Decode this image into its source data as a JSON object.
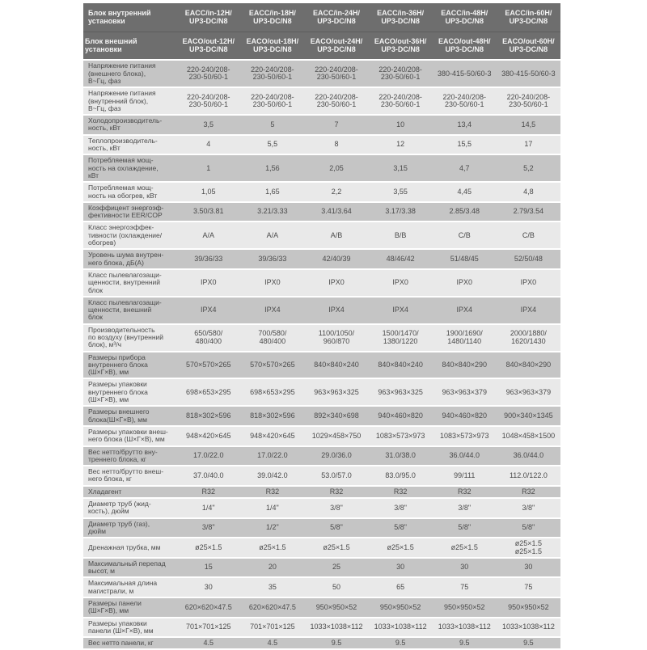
{
  "colors": {
    "page_bg": "#ffffff",
    "header_bg": "#6e6e6e",
    "header_divider": "#5d5d5d",
    "header_text": "#f3f3f3",
    "row_dark": "#c5c5c5",
    "row_light": "#e9e9e9",
    "cell_text": "#4a4a4a",
    "separator": "#ffffff"
  },
  "table": {
    "header_rows": [
      {
        "label": "Блок внутренний\nустановки",
        "cells": [
          "EACC/in-12H/\nUP3-DC/N8",
          "EACC/in-18H/\nUP3-DC/N8",
          "EACC/in-24H/\nUP3-DC/N8",
          "EACC/in-36H/\nUP3-DC/N8",
          "EACC/in-48H/\nUP3-DC/N8",
          "EACC/in-60H/\nUP3-DC/N8"
        ]
      },
      {
        "label": "Блок внешний\nустановки",
        "cells": [
          "EACO/out-12H/\nUP3-DC/N8",
          "EACO/out-18H/\nUP3-DC/N8",
          "EACO/out-24H/\nUP3-DC/N8",
          "EACO/out-36H/\nUP3-DC/N8",
          "EACO/out-48H/\nUP3-DC/N8",
          "EACO/out-60H/\nUP3-DC/N8"
        ]
      }
    ],
    "rows": [
      {
        "label": "Напряжение питания\n(внешнего блока),\nВ~Гц, фаз",
        "values": [
          "220-240/208-\n230-50/60-1",
          "220-240/208-\n230-50/60-1",
          "220-240/208-\n230-50/60-1",
          "220-240/208-\n230-50/60-1",
          "380-415-50/60-3",
          "380-415-50/60-3"
        ]
      },
      {
        "label": "Напряжение питания\n(внутренний блок),\nВ~Гц, фаз",
        "values": [
          "220-240/208-\n230-50/60-1",
          "220-240/208-\n230-50/60-1",
          "220-240/208-\n230-50/60-1",
          "220-240/208-\n230-50/60-1",
          "220-240/208-\n230-50/60-1",
          "220-240/208-\n230-50/60-1"
        ]
      },
      {
        "label": "Холодопроизводитель-\nность, кВт",
        "values": [
          "3,5",
          "5",
          "7",
          "10",
          "13,4",
          "14,5"
        ]
      },
      {
        "label": "Теплопроизводитель-\nность, кВт",
        "values": [
          "4",
          "5,5",
          "8",
          "12",
          "15,5",
          "17"
        ]
      },
      {
        "label": "Потребляемая мощ-\nность на охлаждение,\nкВт",
        "values": [
          "1",
          "1,56",
          "2,05",
          "3,15",
          "4,7",
          "5,2"
        ]
      },
      {
        "label": "Потребляемая мощ-\nность на обогрев, кВт",
        "values": [
          "1,05",
          "1,65",
          "2,2",
          "3,55",
          "4,45",
          "4,8"
        ]
      },
      {
        "label": "Коэффицент энергоэф-\nфективности EER/COP",
        "values": [
          "3.50/3.81",
          "3.21/3.33",
          "3.41/3.64",
          "3.17/3.38",
          "2.85/3.48",
          "2.79/3.54"
        ]
      },
      {
        "label": "Класс энергоэффек-\nтивности (охлаждение/\nобогрев)",
        "values": [
          "A/A",
          "A/A",
          "A/B",
          "B/B",
          "C/B",
          "C/B"
        ]
      },
      {
        "label": "Уровень шума внутрен-\nнего блока, дБ(А)",
        "values": [
          "39/36/33",
          "39/36/33",
          "42/40/39",
          "48/46/42",
          "51/48/45",
          "52/50/48"
        ]
      },
      {
        "label": "Класс пылевлагозащи-\nщенности, внутренний\nблок",
        "values": [
          "IPX0",
          "IPX0",
          "IPX0",
          "IPX0",
          "IPX0",
          "IPX0"
        ]
      },
      {
        "label": "Класс пылевлагозащи-\nщенности, внешний\nблок",
        "values": [
          "IPX4",
          "IPX4",
          "IPX4",
          "IPX4",
          "IPX4",
          "IPX4"
        ]
      },
      {
        "label": "Производительность\nпо воздуху (внутренний\nблок), м³/ч",
        "values": [
          "650/580/\n480/400",
          "700/580/\n480/400",
          "1100/1050/\n960/870",
          "1500/1470/\n1380/1220",
          "1900/1690/\n1480/1140",
          "2000/1880/\n1620/1430"
        ]
      },
      {
        "label": "Размеры прибора\nвнутреннего блока\n(Ш×Г×В), мм",
        "values": [
          "570×570×265",
          "570×570×265",
          "840×840×240",
          "840×840×240",
          "840×840×290",
          "840×840×290"
        ]
      },
      {
        "label": "Размеры упаковки\nвнутреннего блока\n(Ш×Г×В), мм",
        "values": [
          "698×653×295",
          "698×653×295",
          "963×963×325",
          "963×963×325",
          "963×963×379",
          "963×963×379"
        ]
      },
      {
        "label": "Размеры внешнего\nблока(Ш×Г×В), мм",
        "values": [
          "818×302×596",
          "818×302×596",
          "892×340×698",
          "940×460×820",
          "940×460×820",
          "900×340×1345"
        ]
      },
      {
        "label": "Размеры упаковки внеш-\nнего блока (Ш×Г×В), мм",
        "values": [
          "948×420×645",
          "948×420×645",
          "1029×458×750",
          "1083×573×973",
          "1083×573×973",
          "1048×458×1500"
        ]
      },
      {
        "label": "Вес нетто/брутто вну-\nтреннего блока, кг",
        "values": [
          "17.0/22.0",
          "17.0/22.0",
          "29.0/36.0",
          "31.0/38.0",
          "36.0/44.0",
          "36.0/44.0"
        ]
      },
      {
        "label": "Вес нетто/брутто внеш-\nнего блока, кг",
        "values": [
          "37.0/40.0",
          "39.0/42.0",
          "53.0/57.0",
          "83.0/95.0",
          "99/111",
          "112.0/122.0"
        ]
      },
      {
        "label": "Хладагент",
        "values": [
          "R32",
          "R32",
          "R32",
          "R32",
          "R32",
          "R32"
        ]
      },
      {
        "label": "Диаметр труб (жид-\nкость), дюйм",
        "values": [
          "1/4\"",
          "1/4\"",
          "3/8\"",
          "3/8\"",
          "3/8\"",
          "3/8\""
        ]
      },
      {
        "label": "Диаметр труб (газ),\nдюйм",
        "values": [
          "3/8\"",
          "1/2\"",
          "5/8\"",
          "5/8\"",
          "5/8\"",
          "5/8\""
        ]
      },
      {
        "label": "Дренажная трубка, мм",
        "values": [
          "ø25×1.5",
          "ø25×1.5",
          "ø25×1.5",
          "ø25×1.5",
          "ø25×1.5",
          "ø25×1.5\nø25×1.5"
        ]
      },
      {
        "label": "Максимальный перепад\nвысот, м",
        "values": [
          "15",
          "20",
          "25",
          "30",
          "30",
          "30"
        ]
      },
      {
        "label": "Максимальная длина\nмагистрали, м",
        "values": [
          "30",
          "35",
          "50",
          "65",
          "75",
          "75"
        ]
      },
      {
        "label": "Размеры панели\n(Ш×Г×В), мм",
        "values": [
          "620×620×47.5",
          "620×620×47.5",
          "950×950×52",
          "950×950×52",
          "950×950×52",
          "950×950×52"
        ]
      },
      {
        "label": "Размеры упаковки\nпанели (Ш×Г×В), мм",
        "values": [
          "701×701×125",
          "701×701×125",
          "1033×1038×112",
          "1033×1038×112",
          "1033×1038×112",
          "1033×1038×112"
        ]
      },
      {
        "label": "Вес нетто панели, кг",
        "values": [
          "4.5",
          "4.5",
          "9.5",
          "9.5",
          "9.5",
          "9.5"
        ]
      }
    ]
  }
}
